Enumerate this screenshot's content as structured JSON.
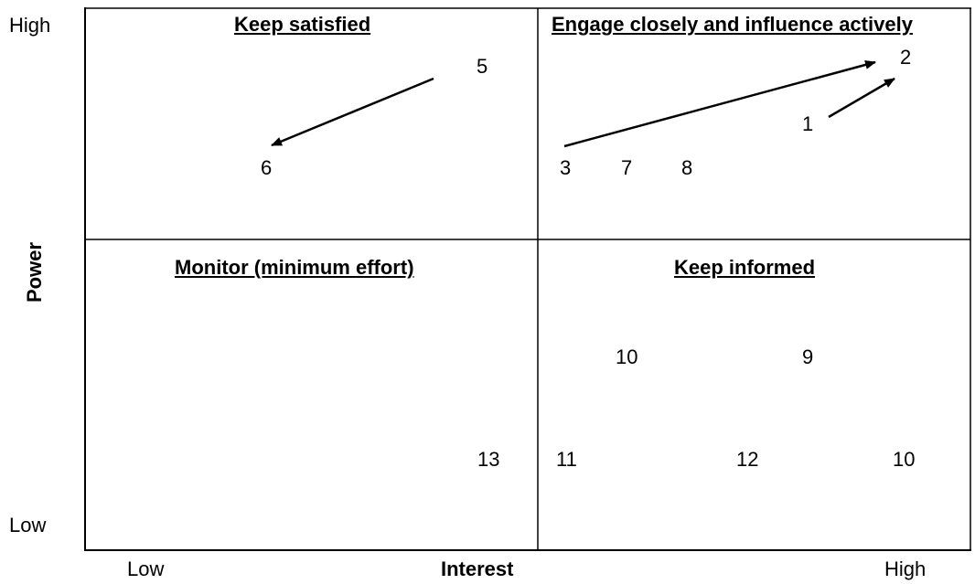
{
  "axes": {
    "y_title": "Power",
    "y_high": "High",
    "y_low": "Low",
    "x_title": "Interest",
    "x_low": "Low",
    "x_high": "High"
  },
  "quadrants": {
    "top_left": "Keep satisfied",
    "top_right": "Engage closely and influence actively",
    "bottom_left": "Monitor (minimum effort)",
    "bottom_right": "Keep informed"
  },
  "stakeholders": {
    "s1": "1",
    "s2": "2",
    "s3": "3",
    "s5": "5",
    "s6": "6",
    "s7": "7",
    "s8": "8",
    "s9": "9",
    "s10a": "10",
    "s10b": "10",
    "s11": "11",
    "s12": "12",
    "s13": "13"
  },
  "arrows": [
    {
      "from": "5",
      "to": "6"
    },
    {
      "from": "3",
      "to": "2"
    },
    {
      "from": "1",
      "to": "2"
    }
  ]
}
